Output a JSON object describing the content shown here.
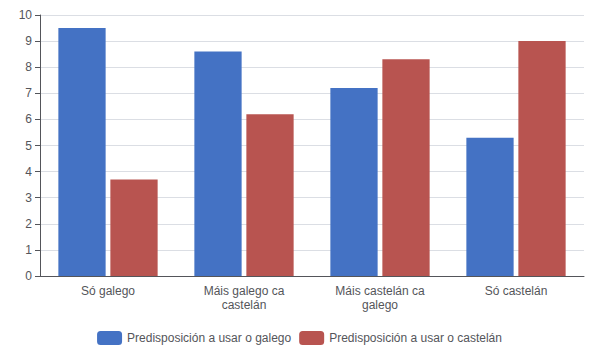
{
  "chart_data": {
    "type": "bar",
    "categories": [
      "Só galego",
      "Máis galego ca\ncastelán",
      "Máis castelán ca\ngalego",
      "Só castelán"
    ],
    "series": [
      {
        "name": "Predisposición a usar o galego",
        "color": "#4472C4",
        "values": [
          9.5,
          8.6,
          7.2,
          5.3
        ]
      },
      {
        "name": "Predisposición a usar o castelán",
        "color": "#B85450",
        "values": [
          3.7,
          6.2,
          8.3,
          9.0
        ]
      }
    ],
    "ylim": [
      0,
      10
    ],
    "yticks": [
      0,
      1,
      2,
      3,
      4,
      5,
      6,
      7,
      8,
      9,
      10
    ],
    "grid": true,
    "legend": "bottom"
  }
}
